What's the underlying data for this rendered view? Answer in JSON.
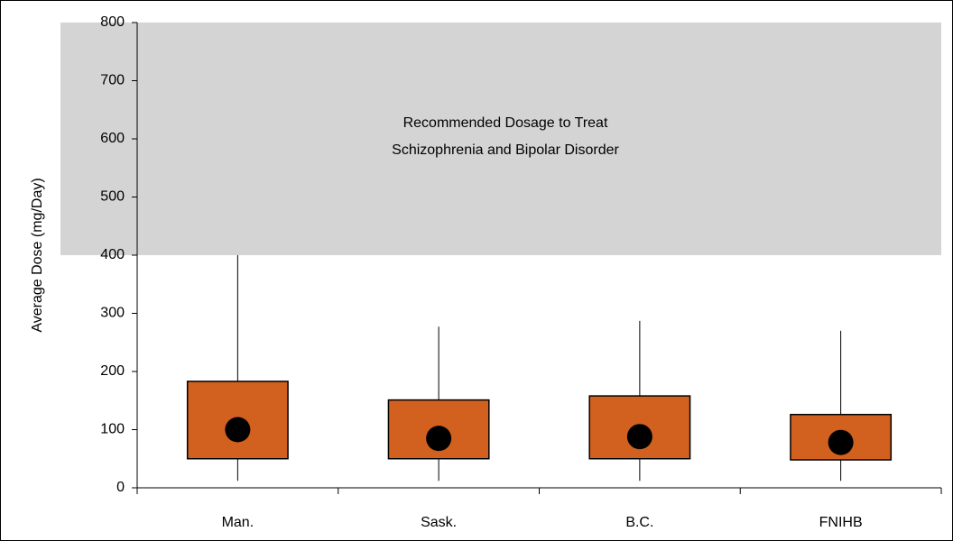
{
  "chart_data": {
    "type": "box",
    "y_label": "Average Dose (mg/Day)",
    "categories": [
      "Man.",
      "Sask.",
      "B.C.",
      "FNIHB"
    ],
    "series": [
      {
        "color": "#d2601f",
        "mean_color": "#000000",
        "min": [
          12,
          12,
          12,
          12
        ],
        "q1": [
          50,
          50,
          50,
          48
        ],
        "q3": [
          183,
          151,
          158,
          126
        ],
        "max": [
          400,
          277,
          287,
          270
        ],
        "mean": [
          100,
          85,
          88,
          78
        ]
      }
    ],
    "band": {
      "range": [
        400,
        800
      ],
      "color": "#d4d4d4",
      "label": [
        "Recommended Dosage to Treat",
        "Schizophrenia and Bipolar Disorder"
      ]
    },
    "ylim": [
      0,
      800
    ],
    "yticks": [
      0,
      100,
      200,
      300,
      400,
      500,
      600,
      700,
      800
    ]
  }
}
